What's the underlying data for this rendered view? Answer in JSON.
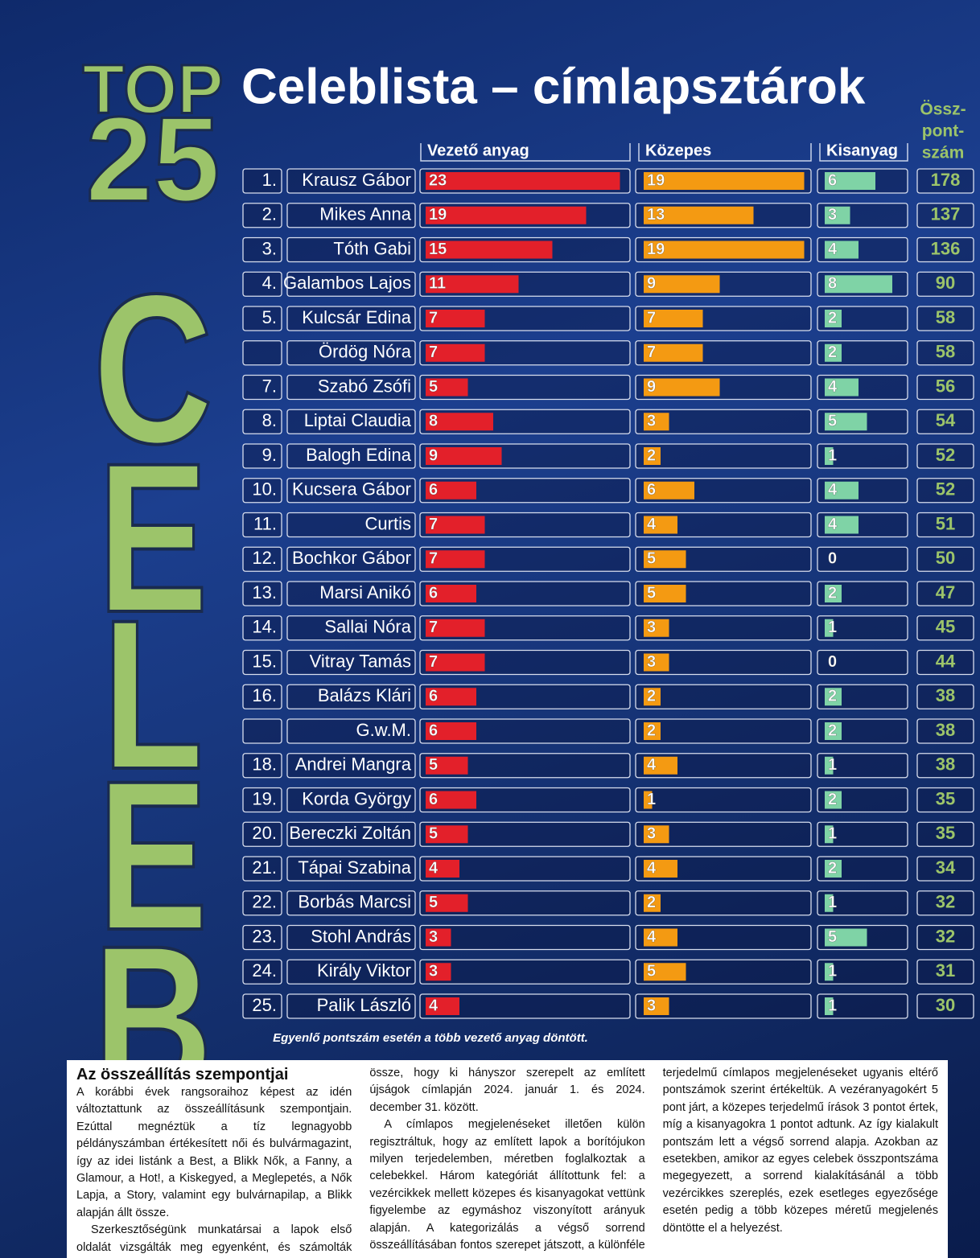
{
  "header": {
    "top": "TOP",
    "number": "25",
    "celeb": [
      "C",
      "E",
      "L",
      "E",
      "B"
    ],
    "title": "Celeblista – címlapsztárok"
  },
  "table": {
    "columns": [
      "Vezető anyag",
      "Közepes",
      "Kisanyag"
    ],
    "total_header": [
      "Össz-",
      "pont-",
      "szám"
    ],
    "colors": [
      "#e3202a",
      "#f49a12",
      "#7fd3a6"
    ],
    "rows": [
      [
        "1.",
        "Krausz Gábor",
        23,
        19,
        6,
        178
      ],
      [
        "2.",
        "Mikes Anna",
        19,
        13,
        3,
        137
      ],
      [
        "3.",
        "Tóth Gabi",
        15,
        19,
        4,
        136
      ],
      [
        "4.",
        "Galambos Lajos",
        11,
        9,
        8,
        90
      ],
      [
        "5.",
        "Kulcsár Edina",
        7,
        7,
        2,
        58
      ],
      [
        null,
        "Ördög Nóra",
        7,
        7,
        2,
        58
      ],
      [
        "7.",
        "Szabó Zsófi",
        5,
        9,
        4,
        56
      ],
      [
        "8.",
        "Liptai Claudia",
        8,
        3,
        5,
        54
      ],
      [
        "9.",
        "Balogh Edina",
        9,
        2,
        1,
        52
      ],
      [
        "10.",
        "Kucsera Gábor",
        6,
        6,
        4,
        52
      ],
      [
        "11.",
        "Curtis",
        7,
        4,
        4,
        51
      ],
      [
        "12.",
        "Bochkor Gábor",
        7,
        5,
        0,
        50
      ],
      [
        "13.",
        "Marsi Anikó",
        6,
        5,
        2,
        47
      ],
      [
        "14.",
        "Sallai Nóra",
        7,
        3,
        1,
        45
      ],
      [
        "15.",
        "Vitray Tamás",
        7,
        3,
        0,
        44
      ],
      [
        "16.",
        "Balázs Klári",
        6,
        2,
        2,
        38
      ],
      [
        null,
        "G.w.M.",
        6,
        2,
        2,
        38
      ],
      [
        "18.",
        "Andrei Mangra",
        5,
        4,
        1,
        38
      ],
      [
        "19.",
        "Korda György",
        6,
        1,
        2,
        35
      ],
      [
        "20.",
        "Bereczki Zoltán",
        5,
        3,
        1,
        35
      ],
      [
        "21.",
        "Tápai Szabina",
        4,
        4,
        2,
        34
      ],
      [
        "22.",
        "Borbás Marcsi",
        5,
        2,
        1,
        32
      ],
      [
        "23.",
        "Stohl András",
        3,
        4,
        5,
        32
      ],
      [
        "24.",
        "Király Viktor",
        3,
        5,
        1,
        31
      ],
      [
        "25.",
        "Palik László",
        4,
        3,
        1,
        30
      ]
    ],
    "footnote": "Egyenlő pontszám esetén a több vezető anyag döntött."
  },
  "article": {
    "title": "Az összeállítás szempontjai",
    "paragraphs": [
      "A korábbi évek rangsoraihoz képest az idén változtattunk az összeállításunk szempontjain. Ezúttal megnéztük a tíz legnagyobb példányszámban értékesített női és bulvármagazint, így az idei listánk a Best, a Blikk Nők, a Fanny, a Glamour, a Hot!, a Kiskegyed, a Meglepetés, a Nők Lapja, a Story, valamint egy bulvárnapilap, a Blikk alapján állt össze.",
      "Szerkesztőségünk munkatársai a lapok első oldalát vizsgálták meg egyenként, és számolták össze, hogy ki hányszor szerepelt az említett újságok címlapján 2024. január 1. és 2024. december 31. között.",
      "A címlapos megjelenéseket illetően külön regisztráltuk, hogy az említett lapok a borítójukon milyen terjedelemben, méretben foglalkoztak a celebekkel. Három kategóriát állítottunk fel: a vezércikkek mellett közepes és kisanyagokat vettünk figyelembe az egymáshoz viszonyított arányuk alapján. A kategorizálás a végső sorrend összeállításában fontos szerepet játszott, a különféle terjedelmű címlapos megjelenéseket ugyanis eltérő pontszámok szerint értékeltük. A vezéranyagokért 5 pont járt, a közepes terjedelmű írások 3 pontot értek, míg a kisanyagokra 1 pontot adtunk. Az így kialakult pontszám lett a végső sorrend alapja. Azokban az esetekben, amikor az egyes celebek összpontszáma megegyezett, a sorrend kialakításánál a több vezércikkes szereplés, ezek esetleges egyezősége esetén pedig a több közepes méretű megjelenés döntötte el a helyezést."
    ]
  }
}
